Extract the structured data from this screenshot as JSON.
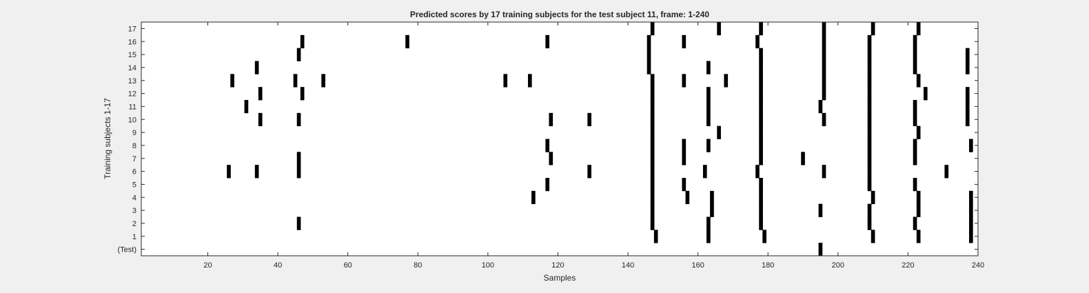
{
  "chart_data": {
    "type": "heatmap",
    "title": "Predicted scores by 17 training subjects for the test subject 11, frame: 1-240",
    "xlabel": "Samples",
    "ylabel": "Training subjects 1-17",
    "xlim": [
      1,
      240
    ],
    "x_ticks": [
      20,
      40,
      60,
      80,
      100,
      120,
      140,
      160,
      180,
      200,
      220,
      240
    ],
    "y_tick_labels": [
      "17",
      "16",
      "15",
      "14",
      "13",
      "12",
      "11",
      "10",
      "9",
      "8",
      "7",
      "6",
      "5",
      "4",
      "3",
      "2",
      "1",
      "(Test)"
    ],
    "grid": false,
    "colors": {
      "background": "#ffffff",
      "mark": "#000000",
      "figure": "#f0f0f0"
    },
    "rows": [
      {
        "row": "17",
        "samples": [
          147,
          166,
          178,
          196,
          210,
          223
        ]
      },
      {
        "row": "16",
        "samples": [
          47,
          77,
          117,
          146,
          156,
          177,
          196,
          209,
          222
        ]
      },
      {
        "row": "15",
        "samples": [
          46,
          146,
          178,
          196,
          209,
          222,
          237
        ]
      },
      {
        "row": "14",
        "samples": [
          34,
          146,
          163,
          178,
          196,
          209,
          222,
          237
        ]
      },
      {
        "row": "13",
        "samples": [
          27,
          45,
          53,
          105,
          112,
          147,
          156,
          168,
          178,
          196,
          209,
          223
        ]
      },
      {
        "row": "12",
        "samples": [
          35,
          47,
          147,
          163,
          178,
          196,
          209,
          225,
          237
        ]
      },
      {
        "row": "11",
        "samples": [
          31,
          147,
          163,
          178,
          195,
          209,
          222,
          237
        ]
      },
      {
        "row": "10",
        "samples": [
          35,
          46,
          118,
          129,
          147,
          163,
          178,
          196,
          209,
          222,
          237
        ]
      },
      {
        "row": "9",
        "samples": [
          147,
          166,
          178,
          209,
          223
        ]
      },
      {
        "row": "8",
        "samples": [
          117,
          147,
          156,
          163,
          178,
          209,
          222,
          238
        ]
      },
      {
        "row": "7",
        "samples": [
          46,
          118,
          147,
          156,
          178,
          190,
          209,
          222
        ]
      },
      {
        "row": "6",
        "samples": [
          26,
          34,
          46,
          129,
          147,
          162,
          177,
          196,
          209,
          231
        ]
      },
      {
        "row": "5",
        "samples": [
          117,
          147,
          156,
          178,
          209,
          222
        ]
      },
      {
        "row": "4",
        "samples": [
          113,
          147,
          157,
          164,
          178,
          210,
          223,
          238
        ]
      },
      {
        "row": "3",
        "samples": [
          147,
          164,
          178,
          195,
          209,
          223,
          238
        ]
      },
      {
        "row": "2",
        "samples": [
          46,
          147,
          163,
          178,
          209,
          222,
          238
        ]
      },
      {
        "row": "1",
        "samples": [
          148,
          163,
          179,
          210,
          223,
          238
        ]
      },
      {
        "row": "(Test)",
        "samples": [
          195
        ]
      }
    ]
  }
}
